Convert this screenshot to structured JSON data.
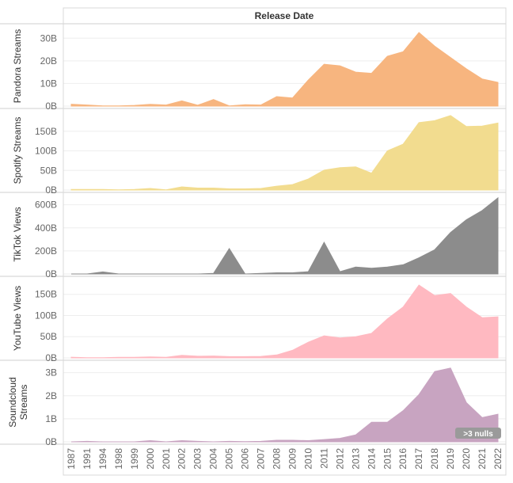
{
  "chart_data": {
    "type": "area",
    "title": "Release Date",
    "x": [
      1987,
      1991,
      1994,
      1998,
      1999,
      2000,
      2001,
      2002,
      2003,
      2004,
      2005,
      2006,
      2007,
      2008,
      2009,
      2010,
      2011,
      2012,
      2013,
      2014,
      2015,
      2016,
      2017,
      2018,
      2019,
      2020,
      2021,
      2022
    ],
    "x_tick_labels": [
      "1987",
      "1991",
      "1994",
      "1998",
      "1999",
      "2000",
      "2001",
      "2002",
      "2003",
      "2004",
      "2005",
      "2006",
      "2007",
      "2008",
      "2009",
      "2010",
      "2011",
      "2012",
      "2013",
      "2014",
      "2015",
      "2016",
      "2017",
      "2018",
      "2019",
      "2020",
      "2021",
      "2022"
    ],
    "grid": true,
    "series": [
      {
        "name": "Pandora Streams",
        "color": "#f7b57f",
        "ylim": [
          0,
          35
        ],
        "unit": "B",
        "yticks": [
          "0B",
          "10B",
          "20B",
          "30B"
        ],
        "yticks_values": [
          0,
          10,
          20,
          30
        ],
        "values": [
          0.8,
          0.5,
          0.1,
          0.1,
          0.3,
          0.8,
          0.5,
          2.3,
          0.4,
          2.9,
          0.1,
          0.6,
          0.5,
          4.2,
          3.6,
          11.5,
          18.5,
          17.8,
          15,
          14.5,
          22,
          24,
          32.5,
          26.5,
          21.5,
          16.5,
          12,
          10.5
        ]
      },
      {
        "name": "Spotify Streams",
        "color": "#f2dc8f",
        "ylim": [
          0,
          200
        ],
        "unit": "B",
        "yticks": [
          "0B",
          "50B",
          "100B",
          "150B"
        ],
        "yticks_values": [
          0,
          50,
          100,
          150
        ],
        "values": [
          1.5,
          1.5,
          1.5,
          0.5,
          1.5,
          4,
          0.5,
          8,
          5,
          5,
          3,
          3,
          4,
          10,
          14,
          28,
          51,
          57,
          59,
          43,
          100,
          117,
          172,
          177,
          190,
          162,
          163,
          171
        ]
      },
      {
        "name": "TikTok Views",
        "color": "#8c8c8c",
        "ylim": [
          0,
          680
        ],
        "unit": "B",
        "yticks": [
          "0B",
          "200B",
          "400B",
          "600B"
        ],
        "yticks_values": [
          0,
          200,
          400,
          600
        ],
        "values": [
          0,
          0,
          18,
          0,
          0,
          0,
          0,
          0,
          0,
          5,
          220,
          0,
          5,
          10,
          10,
          20,
          275,
          20,
          60,
          50,
          60,
          80,
          140,
          210,
          360,
          470,
          550,
          660
        ]
      },
      {
        "name": "YouTube Views",
        "color": "#ffb9c1",
        "ylim": [
          0,
          185
        ],
        "unit": "B",
        "yticks": [
          "0B",
          "50B",
          "100B",
          "150B"
        ],
        "yticks_values": [
          0,
          50,
          100,
          150
        ],
        "values": [
          1.5,
          0.5,
          0.5,
          1.5,
          1.5,
          2.5,
          1.5,
          6,
          4,
          4.5,
          3,
          3,
          3.5,
          7,
          18,
          37,
          52,
          47,
          50,
          58,
          92,
          120,
          172,
          147,
          152,
          120,
          95,
          97
        ]
      },
      {
        "name": "Soundcloud Streams",
        "color": "#c8a4c1",
        "ylim": [
          0,
          3.4
        ],
        "unit": "B",
        "yticks": [
          "0B",
          "1B",
          "2B",
          "3B"
        ],
        "yticks_values": [
          0,
          1,
          2,
          3
        ],
        "values": [
          0,
          0.02,
          0,
          0,
          0,
          0.05,
          0,
          0.05,
          0.02,
          0,
          0.02,
          0.01,
          0.02,
          0.07,
          0.07,
          0.05,
          0.1,
          0.15,
          0.3,
          0.85,
          0.85,
          1.35,
          2.05,
          3.05,
          3.2,
          1.7,
          1.05,
          1.2
        ]
      }
    ],
    "annotation": ">3 nulls"
  }
}
